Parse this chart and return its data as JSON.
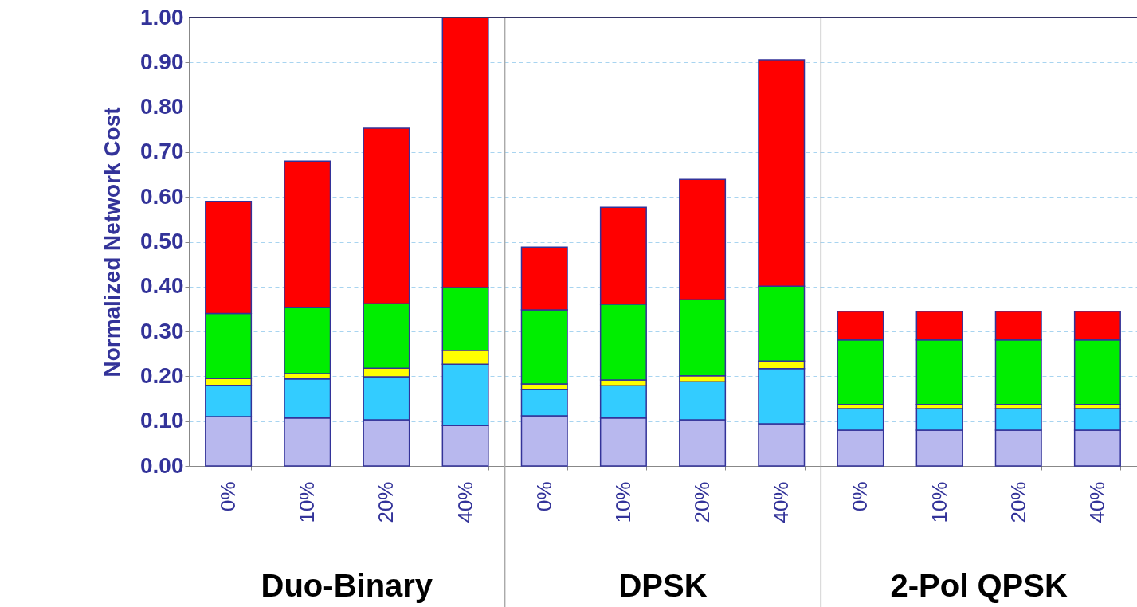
{
  "chart_data": {
    "type": "bar",
    "stacked": true,
    "ylabel": "Normalized Network Cost",
    "categories": [
      "0%",
      "10%",
      "20%",
      "40%",
      "0%",
      "10%",
      "20%",
      "40%",
      "0%",
      "10%",
      "20%",
      "40%"
    ],
    "series": [
      {
        "color": "#b8b8ee",
        "values": [
          0.11,
          0.107,
          0.103,
          0.09,
          0.112,
          0.107,
          0.103,
          0.094,
          0.08,
          0.08,
          0.08,
          0.08
        ]
      },
      {
        "color": "#33ccff",
        "values": [
          0.07,
          0.087,
          0.096,
          0.137,
          0.059,
          0.072,
          0.085,
          0.123,
          0.048,
          0.048,
          0.048,
          0.048
        ]
      },
      {
        "color": "#ffff00",
        "values": [
          0.015,
          0.012,
          0.019,
          0.031,
          0.012,
          0.013,
          0.013,
          0.017,
          0.009,
          0.009,
          0.009,
          0.009
        ]
      },
      {
        "color": "#00ee00",
        "values": [
          0.145,
          0.147,
          0.144,
          0.14,
          0.165,
          0.169,
          0.17,
          0.167,
          0.144,
          0.144,
          0.144,
          0.144
        ]
      },
      {
        "color": "#ff0000",
        "values": [
          0.25,
          0.327,
          0.391,
          0.602,
          0.14,
          0.216,
          0.268,
          0.505,
          0.064,
          0.064,
          0.064,
          0.064
        ]
      }
    ],
    "ylim": [
      0,
      1
    ],
    "yticks": [
      {
        "value": 0,
        "label": "0.00"
      },
      {
        "value": 0.1,
        "label": "0.10"
      },
      {
        "value": 0.2,
        "label": "0.20"
      },
      {
        "value": 0.3,
        "label": "0.30"
      },
      {
        "value": 0.4,
        "label": "0.40"
      },
      {
        "value": 0.5,
        "label": "0.50"
      },
      {
        "value": 0.6,
        "label": "0.60"
      },
      {
        "value": 0.7,
        "label": "0.70"
      },
      {
        "value": 0.8,
        "label": "0.80"
      },
      {
        "value": 0.9,
        "label": "0.90"
      },
      {
        "value": 1,
        "label": "1.00"
      }
    ],
    "grid": "y",
    "annotations": [
      "Duo-Binary",
      "DPSK",
      "2-Pol QPSK"
    ]
  }
}
